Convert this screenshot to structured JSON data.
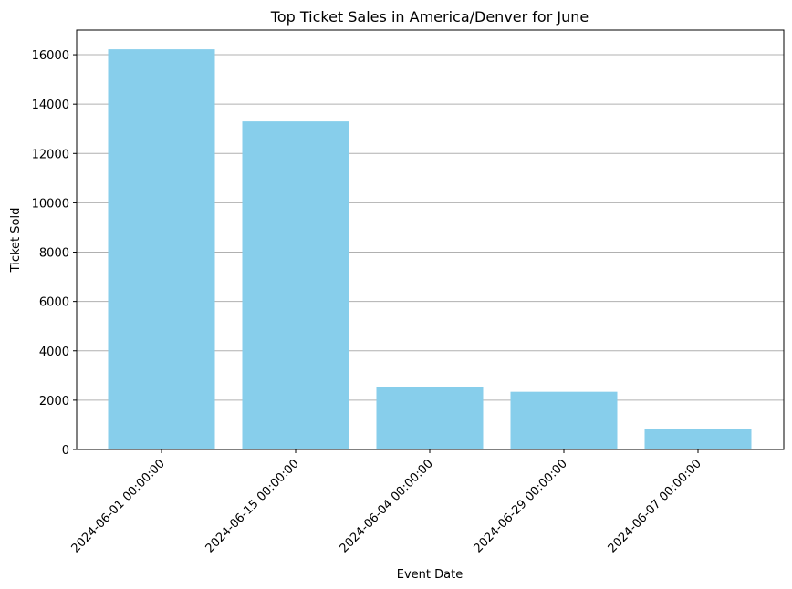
{
  "chart_data": {
    "type": "bar",
    "title": "Top Ticket Sales in America/Denver for June",
    "xlabel": "Event Date",
    "ylabel": "Ticket Sold",
    "categories": [
      "2024-06-01 00:00:00",
      "2024-06-15 00:00:00",
      "2024-06-04 00:00:00",
      "2024-06-29 00:00:00",
      "2024-06-07 00:00:00"
    ],
    "values": [
      16220,
      13300,
      2520,
      2340,
      820
    ],
    "ylim": [
      0,
      17000
    ],
    "yticks": [
      0,
      2000,
      4000,
      6000,
      8000,
      10000,
      12000,
      14000,
      16000
    ],
    "grid": "y-axis only",
    "bar_color": "#87ceeb",
    "grid_color": "#b0b0b0",
    "x_tick_rotation": "45°"
  }
}
